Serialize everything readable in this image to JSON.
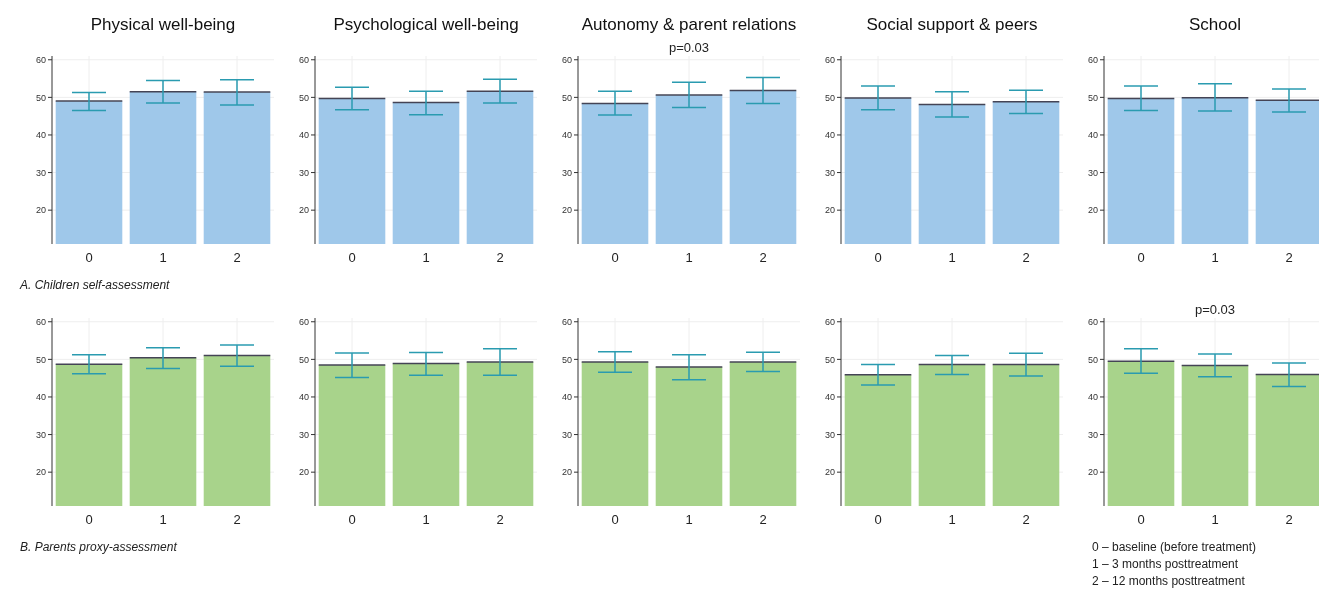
{
  "chart_data": [
    {
      "type": "bar",
      "title": "Physical well-being",
      "categories": [
        "0",
        "1",
        "2"
      ],
      "values": [
        49,
        51.5,
        51.4
      ],
      "errors": [
        [
          46.5,
          51.3
        ],
        [
          48.5,
          54.5
        ],
        [
          48,
          54.7
        ]
      ],
      "color": "#9fc8ea",
      "ylim": [
        11,
        61
      ],
      "yticks": [
        20,
        30,
        40,
        50,
        60
      ],
      "grid": true,
      "annotations": [
        "A. Children self-assessment"
      ]
    },
    {
      "type": "bar",
      "title": "Psychological well-being",
      "categories": [
        "0",
        "1",
        "2"
      ],
      "values": [
        49.7,
        48.6,
        51.6
      ],
      "errors": [
        [
          46.7,
          52.7
        ],
        [
          45.4,
          51.6
        ],
        [
          48.5,
          54.8
        ]
      ],
      "color": "#9fc8ea",
      "ylim": [
        11,
        61
      ],
      "yticks": [
        20,
        30,
        40,
        50,
        60
      ],
      "grid": true
    },
    {
      "type": "bar",
      "title": "Autonomy & parent relations",
      "categories": [
        "0",
        "1",
        "2"
      ],
      "values": [
        48.4,
        50.6,
        51.8
      ],
      "errors": [
        [
          45.3,
          51.6
        ],
        [
          47.3,
          54
        ],
        [
          48.4,
          55.3
        ]
      ],
      "color": "#9fc8ea",
      "ylim": [
        11,
        61
      ],
      "yticks": [
        20,
        30,
        40,
        50,
        60
      ],
      "grid": true,
      "annotations": [
        "p=0.03"
      ]
    },
    {
      "type": "bar",
      "title": "Social support & peers",
      "categories": [
        "0",
        "1",
        "2"
      ],
      "values": [
        49.8,
        48.1,
        48.8
      ],
      "errors": [
        [
          46.7,
          53
        ],
        [
          44.8,
          51.5
        ],
        [
          45.7,
          51.9
        ]
      ],
      "color": "#9fc8ea",
      "ylim": [
        11,
        61
      ],
      "yticks": [
        20,
        30,
        40,
        50,
        60
      ],
      "grid": true
    },
    {
      "type": "bar",
      "title": "School",
      "categories": [
        "0",
        "1",
        "2"
      ],
      "values": [
        49.7,
        49.9,
        49.2
      ],
      "errors": [
        [
          46.5,
          53
        ],
        [
          46.4,
          53.6
        ],
        [
          46.1,
          52.2
        ]
      ],
      "color": "#9fc8ea",
      "ylim": [
        11,
        61
      ],
      "yticks": [
        20,
        30,
        40,
        50,
        60
      ],
      "grid": true
    },
    {
      "type": "bar",
      "categories": [
        "0",
        "1",
        "2"
      ],
      "values": [
        48.7,
        50.4,
        51
      ],
      "errors": [
        [
          46.2,
          51.2
        ],
        [
          47.6,
          53.1
        ],
        [
          48.2,
          53.8
        ]
      ],
      "color": "#a8d38b",
      "ylim": [
        11,
        61
      ],
      "yticks": [
        20,
        30,
        40,
        50,
        60
      ],
      "grid": true,
      "annotations": [
        "B. Parents proxy-assessment"
      ]
    },
    {
      "type": "bar",
      "categories": [
        "0",
        "1",
        "2"
      ],
      "values": [
        48.5,
        48.9,
        49.3
      ],
      "errors": [
        [
          45.2,
          51.7
        ],
        [
          45.8,
          51.8
        ],
        [
          45.8,
          52.8
        ]
      ],
      "color": "#a8d38b",
      "ylim": [
        11,
        61
      ],
      "yticks": [
        20,
        30,
        40,
        50,
        60
      ],
      "grid": true
    },
    {
      "type": "bar",
      "categories": [
        "0",
        "1",
        "2"
      ],
      "values": [
        49.3,
        48,
        49.3
      ],
      "errors": [
        [
          46.6,
          52
        ],
        [
          44.6,
          51.2
        ],
        [
          46.8,
          51.9
        ]
      ],
      "color": "#a8d38b",
      "ylim": [
        11,
        61
      ],
      "yticks": [
        20,
        30,
        40,
        50,
        60
      ],
      "grid": true
    },
    {
      "type": "bar",
      "categories": [
        "0",
        "1",
        "2"
      ],
      "values": [
        45.9,
        48.6,
        48.6
      ],
      "errors": [
        [
          43.2,
          48.6
        ],
        [
          46,
          51
        ],
        [
          45.6,
          51.6
        ]
      ],
      "color": "#a8d38b",
      "ylim": [
        11,
        61
      ],
      "yticks": [
        20,
        30,
        40,
        50,
        60
      ],
      "grid": true
    },
    {
      "type": "bar",
      "categories": [
        "0",
        "1",
        "2"
      ],
      "values": [
        49.5,
        48.4,
        46
      ],
      "errors": [
        [
          46.3,
          52.8
        ],
        [
          45.4,
          51.4
        ],
        [
          42.8,
          49
        ]
      ],
      "color": "#a8d38b",
      "ylim": [
        11,
        61
      ],
      "yticks": [
        20,
        30,
        40,
        50,
        60
      ],
      "grid": true,
      "annotations": [
        "p=0.03",
        "0 – baseline (before treatment)",
        "1 – 3 months posttreatment",
        "2 – 12 months posttreatment"
      ]
    }
  ]
}
